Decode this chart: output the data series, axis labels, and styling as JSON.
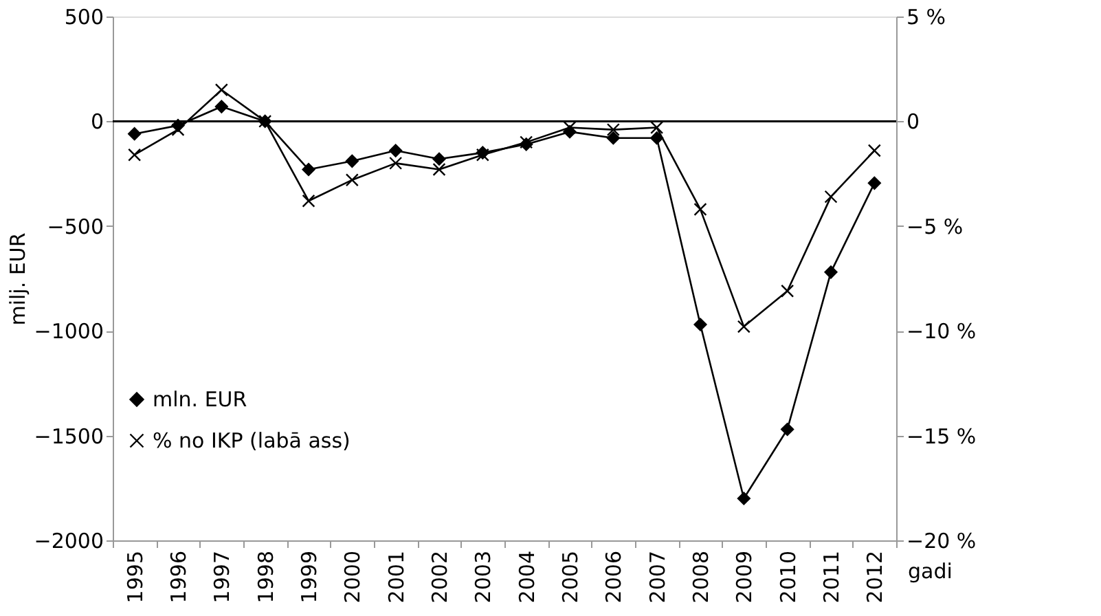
{
  "chart_data": {
    "type": "line",
    "xlabel": "gadi",
    "ylabel": "milj. EUR",
    "categories": [
      "1995",
      "1996",
      "1997",
      "1998",
      "1999",
      "2000",
      "2001",
      "2002",
      "2003",
      "2004",
      "2005",
      "2006",
      "2007",
      "2008",
      "2009",
      "2010",
      "2011",
      "2012"
    ],
    "series": [
      {
        "name": "mln. EUR",
        "color": "#000000",
        "marker": "diamond",
        "values": [
          -60,
          -20,
          70,
          0,
          -230,
          -190,
          -140,
          -180,
          -150,
          -110,
          -50,
          -80,
          -80,
          -970,
          -1800,
          -1470,
          -720,
          -295
        ]
      },
      {
        "name": "% no IKP (labā ass)",
        "color": "#000000",
        "marker": "cross",
        "axis": "y2",
        "values": [
          -1.6,
          -0.4,
          1.5,
          0,
          -3.8,
          -2.8,
          -2.0,
          -2.3,
          -1.6,
          -1.0,
          -0.3,
          -0.4,
          -0.3,
          -4.2,
          -9.8,
          -8.1,
          -3.6,
          -1.4
        ]
      }
    ],
    "ylim": [
      -2000,
      500
    ],
    "yticks": [
      {
        "value": -2000,
        "label": "−2000"
      },
      {
        "value": -1500,
        "label": "−1500"
      },
      {
        "value": -1000,
        "label": "−1000"
      },
      {
        "value": -500,
        "label": "−500"
      },
      0,
      500
    ],
    "y2lim": [
      -20,
      5
    ],
    "y2ticks": [
      {
        "value": -20,
        "label": "−20 %"
      },
      {
        "value": -15,
        "label": "−15 %"
      },
      {
        "value": -10,
        "label": "−10 %"
      },
      {
        "value": -5,
        "label": "−5 %"
      },
      0,
      {
        "value": 5,
        "label": "5 %"
      }
    ],
    "ref_lines": [
      {
        "axis": "y",
        "value": 0,
        "color": "#000000"
      }
    ],
    "grid": false,
    "legend": "bottom left",
    "line_style": "solid"
  }
}
